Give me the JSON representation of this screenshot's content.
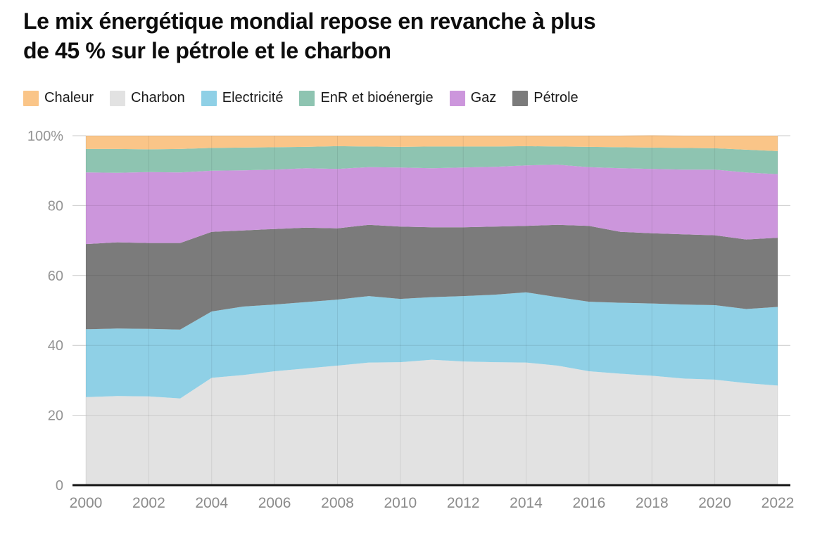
{
  "title": {
    "line1": "Le mix énergétique mondial repose en revanche à plus",
    "line2": "de 45 % sur le pétrole et le charbon"
  },
  "legend": [
    {
      "label": "Chaleur",
      "color": "#FAC588"
    },
    {
      "label": "Charbon",
      "color": "#E2E2E2"
    },
    {
      "label": "Electricité",
      "color": "#8FD0E6"
    },
    {
      "label": "EnR et bioénergie",
      "color": "#8EC4B1"
    },
    {
      "label": "Gaz",
      "color": "#CC96DC"
    },
    {
      "label": "Pétrole",
      "color": "#7B7B7B"
    }
  ],
  "chart_data": {
    "type": "area",
    "stacked": true,
    "normalized": true,
    "unit": "%",
    "title": "Le mix énergétique mondial repose en revanche à plus de 45 % sur le pétrole et le charbon",
    "x": [
      2000,
      2001,
      2002,
      2003,
      2004,
      2005,
      2006,
      2007,
      2008,
      2009,
      2010,
      2011,
      2012,
      2013,
      2014,
      2015,
      2016,
      2017,
      2018,
      2019,
      2020,
      2021,
      2022
    ],
    "stack_order": "bottom_to_top",
    "series": [
      {
        "name": "Charbon",
        "color": "#E2E2E2",
        "values": [
          25.2,
          25.5,
          25.4,
          24.8,
          30.7,
          31.5,
          32.6,
          33.4,
          34.2,
          35.1,
          35.2,
          35.9,
          35.4,
          35.2,
          35.1,
          34.2,
          32.6,
          31.9,
          31.3,
          30.5,
          30.2,
          29.2,
          28.5
        ]
      },
      {
        "name": "Electricité",
        "color": "#8FD0E6",
        "values": [
          19.4,
          19.3,
          19.3,
          19.7,
          19.0,
          19.6,
          19.1,
          19.0,
          18.9,
          19.0,
          18.1,
          17.9,
          18.7,
          19.3,
          20.1,
          19.6,
          19.9,
          20.3,
          20.7,
          21.2,
          21.3,
          21.2,
          22.5
        ]
      },
      {
        "name": "Pétrole",
        "color": "#7B7B7B",
        "values": [
          24.4,
          24.7,
          24.6,
          24.8,
          22.8,
          21.8,
          21.6,
          21.3,
          20.4,
          20.4,
          20.7,
          20.0,
          19.7,
          19.5,
          19.0,
          20.7,
          21.7,
          20.3,
          20.1,
          20.1,
          20.0,
          19.9,
          19.8
        ]
      },
      {
        "name": "Gaz",
        "color": "#CC96DC",
        "values": [
          20.5,
          19.9,
          20.3,
          20.2,
          17.5,
          17.2,
          17.0,
          17.0,
          17.0,
          16.5,
          16.9,
          16.9,
          17.1,
          17.1,
          17.3,
          17.2,
          16.8,
          18.2,
          18.4,
          18.5,
          18.8,
          19.2,
          18.2
        ]
      },
      {
        "name": "EnR et bioénergie",
        "color": "#8EC4B1",
        "values": [
          6.7,
          6.8,
          6.5,
          6.7,
          6.5,
          6.5,
          6.4,
          6.1,
          6.5,
          5.9,
          5.9,
          6.2,
          6.0,
          5.8,
          5.5,
          5.2,
          5.8,
          6.0,
          6.1,
          6.2,
          6.1,
          6.5,
          6.6
        ]
      },
      {
        "name": "Chaleur",
        "color": "#FAC588",
        "values": [
          3.8,
          3.8,
          3.9,
          3.8,
          3.5,
          3.4,
          3.3,
          3.2,
          3.0,
          3.1,
          3.2,
          3.1,
          3.1,
          3.1,
          3.0,
          3.1,
          3.2,
          3.3,
          3.5,
          3.5,
          3.6,
          4.0,
          4.4
        ]
      }
    ],
    "ylim": [
      0,
      100
    ],
    "yticks": [
      {
        "value": 0,
        "label": "0"
      },
      {
        "value": 20,
        "label": "20"
      },
      {
        "value": 40,
        "label": "40"
      },
      {
        "value": 60,
        "label": "60"
      },
      {
        "value": 80,
        "label": "80"
      },
      {
        "value": 100,
        "label": "100%"
      }
    ],
    "xticks": [
      2000,
      2002,
      2004,
      2006,
      2008,
      2010,
      2012,
      2014,
      2016,
      2018,
      2020,
      2022
    ],
    "grid": true,
    "legend_position": "top"
  }
}
